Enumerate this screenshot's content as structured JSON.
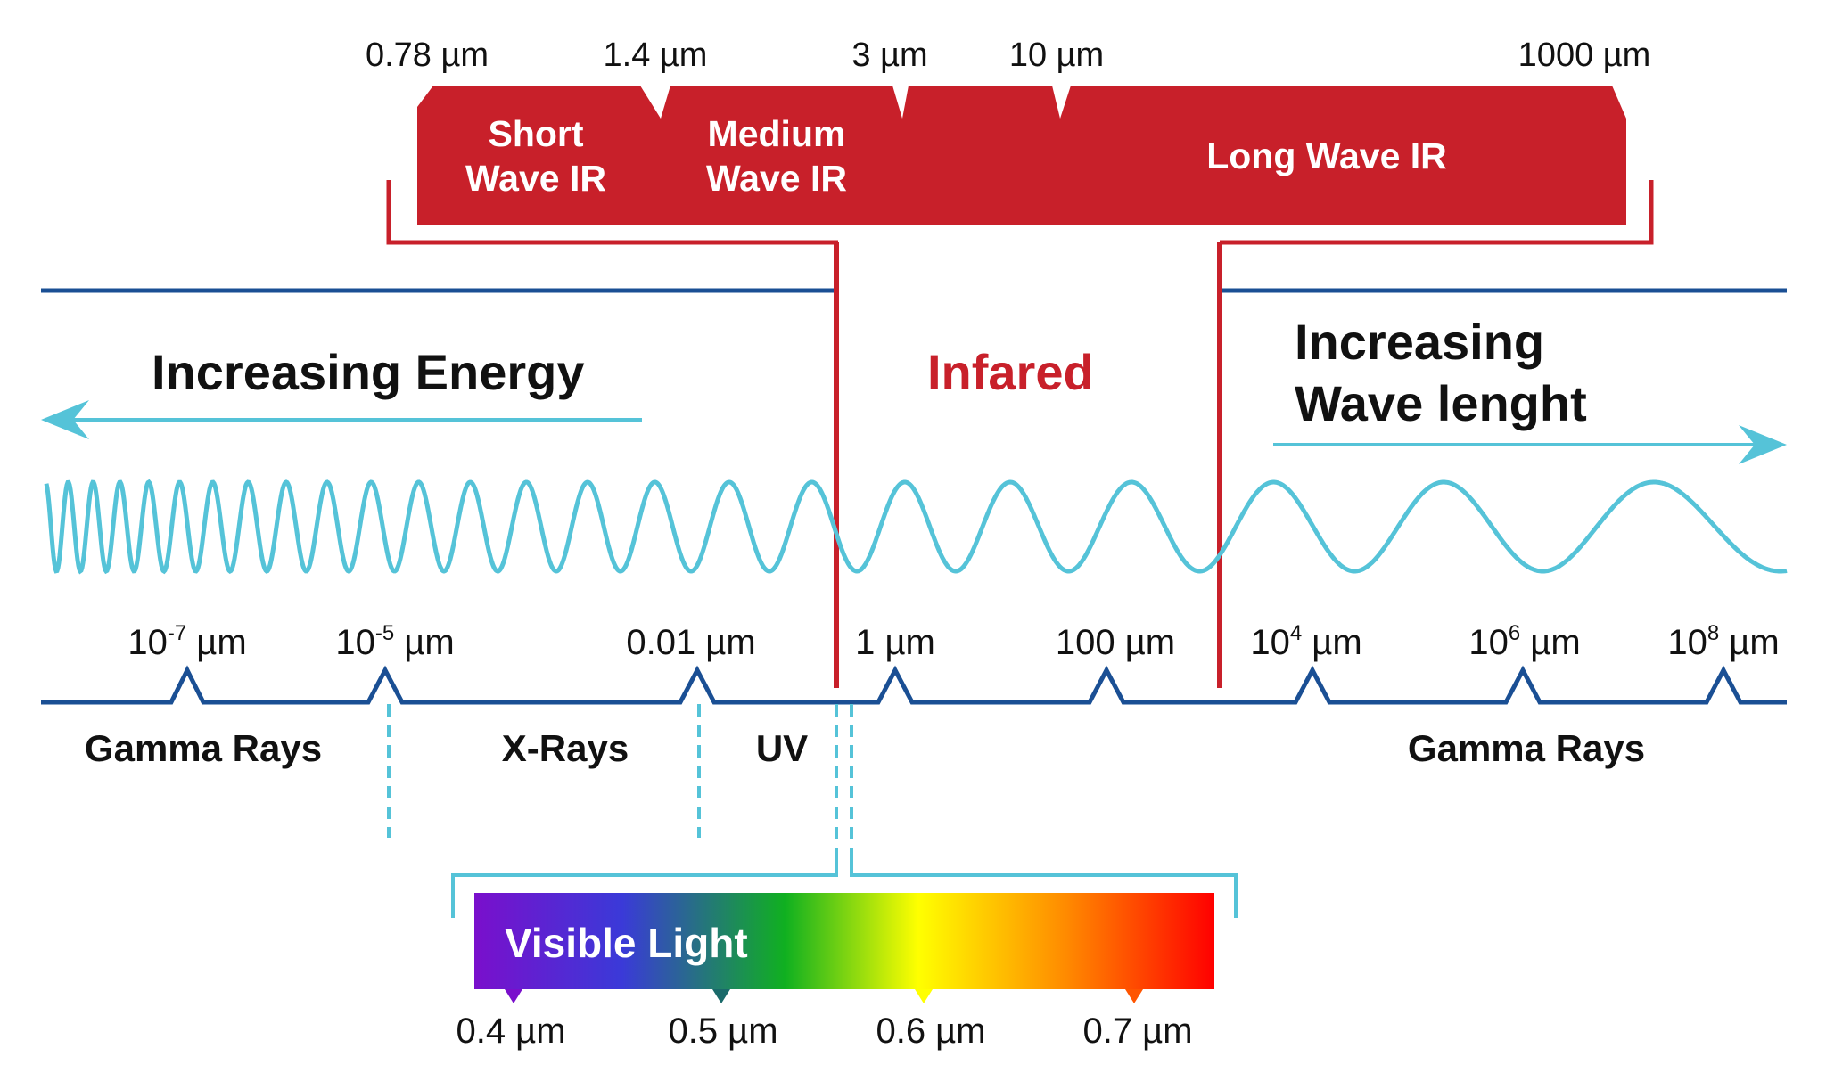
{
  "colors": {
    "ir_red": "#c8202a",
    "axis_blue": "#1a4f94",
    "wave_cyan": "#55c3d8",
    "text": "#111111"
  },
  "ir_band": {
    "boundaries": [
      "0.78 µm",
      "1.4 µm",
      "3 µm",
      "10 µm",
      "1000 µm"
    ],
    "short_label": [
      "Short",
      "Wave IR"
    ],
    "medium_label": [
      "Medium",
      "Wave IR"
    ],
    "long_label": "Long Wave IR"
  },
  "headings": {
    "energy": "Increasing Energy",
    "infrared": "Infared",
    "wavelength_line1": "Increasing",
    "wavelength_line2": "Wave lenght"
  },
  "scale_ticks": [
    {
      "base": "10",
      "exp": "-7",
      "unit": " µm"
    },
    {
      "base": "10",
      "exp": "-5",
      "unit": " µm"
    },
    {
      "base": "0.01 µm",
      "exp": "",
      "unit": ""
    },
    {
      "base": "1 µm",
      "exp": "",
      "unit": ""
    },
    {
      "base": "100 µm",
      "exp": "",
      "unit": ""
    },
    {
      "base": "10",
      "exp": "4",
      "unit": " µm"
    },
    {
      "base": "10",
      "exp": "6",
      "unit": " µm"
    },
    {
      "base": "10",
      "exp": "8",
      "unit": " µm"
    }
  ],
  "regions": {
    "left": "Gamma Rays",
    "xrays": "X-Rays",
    "uv": "UV",
    "right": "Gamma Rays"
  },
  "visible": {
    "title": "Visible Light",
    "gradient_colors": [
      "#7a0fcc",
      "#3a3ad8",
      "#10b020",
      "#ffff00",
      "#ff8a00",
      "#ff0000"
    ],
    "ticks": [
      "0.4 µm",
      "0.5 µm",
      "0.6 µm",
      "0.7 µm"
    ],
    "tick_colors": [
      "#7a0fcc",
      "#1a6a6a",
      "#ffff00",
      "#ff5500"
    ]
  }
}
